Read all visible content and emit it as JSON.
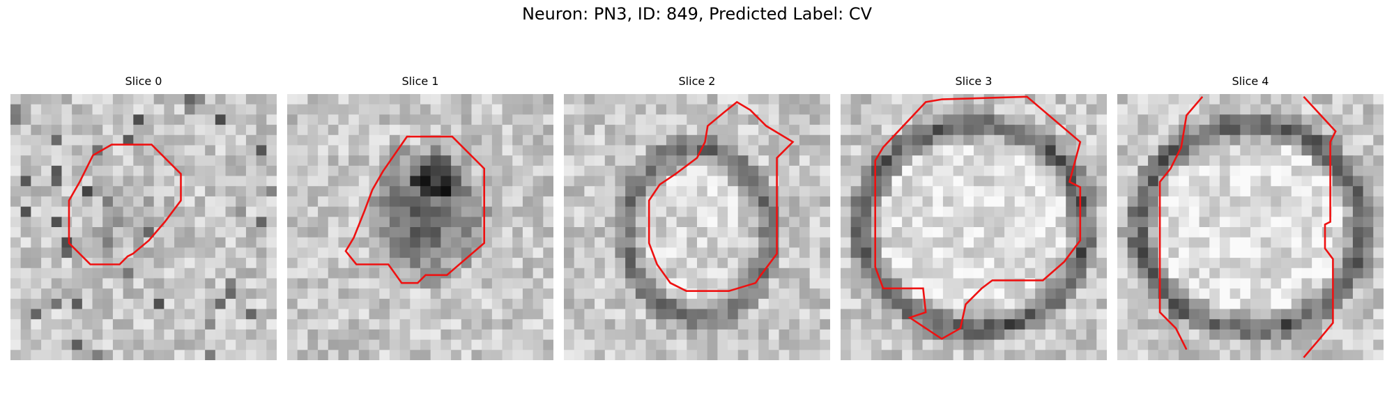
{
  "figure": {
    "title": "Neuron: PN3, ID: 849, Predicted Label: CV"
  },
  "panels": [
    {
      "title": "Slice 0",
      "pattern": "blob"
    },
    {
      "title": "Slice 1",
      "pattern": "dark-blob"
    },
    {
      "title": "Slice 2",
      "pattern": "ring-small"
    },
    {
      "title": "Slice 3",
      "pattern": "ring-large"
    },
    {
      "title": "Slice 4",
      "pattern": "ring-large"
    }
  ],
  "colors": {
    "contour": "#ee1111"
  }
}
